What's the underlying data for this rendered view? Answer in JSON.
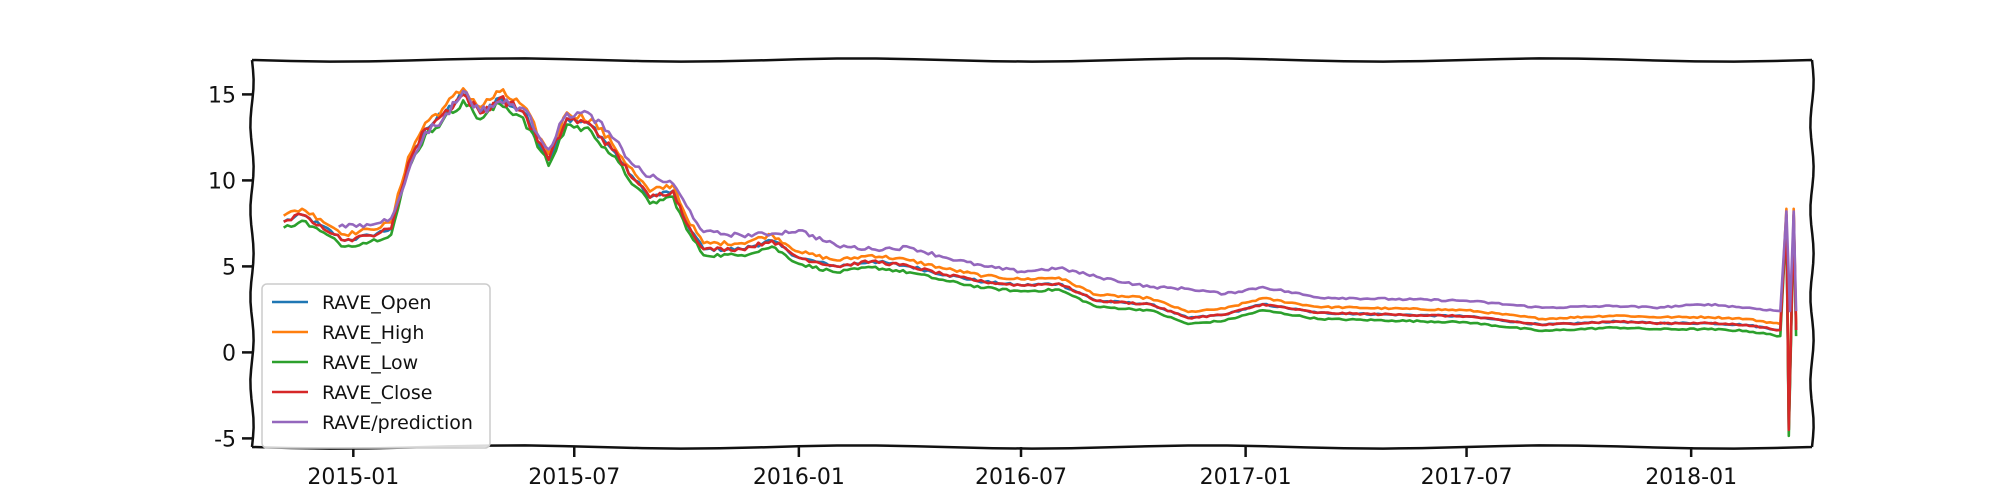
{
  "chart_data": {
    "type": "line",
    "title": "",
    "xlabel": "",
    "ylabel": "",
    "x_range": [
      "2014-10-10",
      "2018-04-10"
    ],
    "ylim": [
      -5.5,
      17
    ],
    "x_ticks": [
      {
        "date": "2015-01-01",
        "label": "2015-01"
      },
      {
        "date": "2015-07-01",
        "label": "2015-07"
      },
      {
        "date": "2016-01-01",
        "label": "2016-01"
      },
      {
        "date": "2016-07-01",
        "label": "2016-07"
      },
      {
        "date": "2017-01-01",
        "label": "2017-01"
      },
      {
        "date": "2017-07-01",
        "label": "2017-07"
      },
      {
        "date": "2018-01-01",
        "label": "2018-01"
      }
    ],
    "y_ticks": [
      {
        "value": 15,
        "label": "15"
      },
      {
        "value": 10,
        "label": "10"
      },
      {
        "value": 5,
        "label": "5"
      },
      {
        "value": 0,
        "label": "0"
      },
      {
        "value": -5,
        "label": "-5"
      }
    ],
    "grid": false,
    "legend_position": "lower-left",
    "series": [
      {
        "name": "RAVE_Open",
        "color": "#1f77b4",
        "offset": 0.0,
        "points": [
          [
            "2014-11-05",
            7.6
          ],
          [
            "2014-11-20",
            8.0
          ],
          [
            "2014-12-05",
            7.4
          ],
          [
            "2014-12-25",
            6.5
          ],
          [
            "2015-01-15",
            6.8
          ],
          [
            "2015-02-01",
            7.2
          ],
          [
            "2015-02-15",
            11.0
          ],
          [
            "2015-03-01",
            13.0
          ],
          [
            "2015-03-15",
            13.8
          ],
          [
            "2015-04-01",
            15.0
          ],
          [
            "2015-04-15",
            13.9
          ],
          [
            "2015-05-01",
            14.8
          ],
          [
            "2015-05-20",
            14.0
          ],
          [
            "2015-06-10",
            11.2
          ],
          [
            "2015-06-25",
            13.6
          ],
          [
            "2015-07-15",
            13.2
          ],
          [
            "2015-08-01",
            11.8
          ],
          [
            "2015-08-20",
            10.0
          ],
          [
            "2015-09-01",
            9.0
          ],
          [
            "2015-09-20",
            9.4
          ],
          [
            "2015-10-01",
            7.5
          ],
          [
            "2015-10-15",
            6.0
          ],
          [
            "2015-11-15",
            6.0
          ],
          [
            "2015-12-10",
            6.5
          ],
          [
            "2016-01-01",
            5.5
          ],
          [
            "2016-02-01",
            5.0
          ],
          [
            "2016-03-01",
            5.3
          ],
          [
            "2016-04-01",
            5.0
          ],
          [
            "2016-05-01",
            4.5
          ],
          [
            "2016-06-01",
            4.1
          ],
          [
            "2016-07-01",
            3.9
          ],
          [
            "2016-08-01",
            4.0
          ],
          [
            "2016-09-01",
            3.0
          ],
          [
            "2016-10-15",
            2.8
          ],
          [
            "2016-11-15",
            2.0
          ],
          [
            "2016-12-15",
            2.2
          ],
          [
            "2017-01-15",
            2.8
          ],
          [
            "2017-03-01",
            2.3
          ],
          [
            "2017-05-01",
            2.2
          ],
          [
            "2017-07-01",
            2.1
          ],
          [
            "2017-09-01",
            1.6
          ],
          [
            "2017-11-01",
            1.8
          ],
          [
            "2017-12-01",
            1.7
          ],
          [
            "2018-01-15",
            1.7
          ],
          [
            "2018-02-15",
            1.6
          ],
          [
            "2018-03-15",
            1.3
          ],
          [
            "2018-03-20",
            8.0
          ],
          [
            "2018-03-22",
            -4.5
          ],
          [
            "2018-03-24",
            1.5
          ],
          [
            "2018-03-26",
            8.0
          ],
          [
            "2018-03-28",
            1.3
          ]
        ]
      },
      {
        "name": "RAVE_High",
        "color": "#ff7f0e",
        "offset": 0.35,
        "points": [
          [
            "2014-11-05",
            7.6
          ],
          [
            "2014-11-20",
            8.0
          ],
          [
            "2014-12-05",
            7.4
          ],
          [
            "2014-12-25",
            6.5
          ],
          [
            "2015-01-15",
            6.8
          ],
          [
            "2015-02-01",
            7.2
          ],
          [
            "2015-02-15",
            11.0
          ],
          [
            "2015-03-01",
            13.0
          ],
          [
            "2015-03-15",
            13.8
          ],
          [
            "2015-04-01",
            15.0
          ],
          [
            "2015-04-15",
            13.9
          ],
          [
            "2015-05-01",
            14.8
          ],
          [
            "2015-05-20",
            14.0
          ],
          [
            "2015-06-10",
            11.2
          ],
          [
            "2015-06-25",
            13.6
          ],
          [
            "2015-07-15",
            13.2
          ],
          [
            "2015-08-01",
            11.8
          ],
          [
            "2015-08-20",
            10.0
          ],
          [
            "2015-09-01",
            9.0
          ],
          [
            "2015-09-20",
            9.4
          ],
          [
            "2015-10-01",
            7.5
          ],
          [
            "2015-10-15",
            6.0
          ],
          [
            "2015-11-15",
            6.0
          ],
          [
            "2015-12-10",
            6.5
          ],
          [
            "2016-01-01",
            5.5
          ],
          [
            "2016-02-01",
            5.0
          ],
          [
            "2016-03-01",
            5.3
          ],
          [
            "2016-04-01",
            5.0
          ],
          [
            "2016-05-01",
            4.5
          ],
          [
            "2016-06-01",
            4.1
          ],
          [
            "2016-07-01",
            3.9
          ],
          [
            "2016-08-01",
            4.0
          ],
          [
            "2016-09-01",
            3.0
          ],
          [
            "2016-10-15",
            2.8
          ],
          [
            "2016-11-15",
            2.0
          ],
          [
            "2016-12-15",
            2.2
          ],
          [
            "2017-01-15",
            2.8
          ],
          [
            "2017-03-01",
            2.3
          ],
          [
            "2017-05-01",
            2.2
          ],
          [
            "2017-07-01",
            2.1
          ],
          [
            "2017-09-01",
            1.6
          ],
          [
            "2017-11-01",
            1.8
          ],
          [
            "2017-12-01",
            1.7
          ],
          [
            "2018-01-15",
            1.7
          ],
          [
            "2018-02-15",
            1.6
          ],
          [
            "2018-03-15",
            1.3
          ],
          [
            "2018-03-20",
            8.0
          ],
          [
            "2018-03-22",
            -4.5
          ],
          [
            "2018-03-24",
            1.5
          ],
          [
            "2018-03-26",
            8.0
          ],
          [
            "2018-03-28",
            1.3
          ]
        ]
      },
      {
        "name": "RAVE_Low",
        "color": "#2ca02c",
        "offset": -0.35,
        "points": [
          [
            "2014-11-05",
            7.6
          ],
          [
            "2014-11-20",
            8.0
          ],
          [
            "2014-12-05",
            7.4
          ],
          [
            "2014-12-25",
            6.5
          ],
          [
            "2015-01-15",
            6.8
          ],
          [
            "2015-02-01",
            7.2
          ],
          [
            "2015-02-15",
            11.0
          ],
          [
            "2015-03-01",
            13.0
          ],
          [
            "2015-03-15",
            13.8
          ],
          [
            "2015-04-01",
            15.0
          ],
          [
            "2015-04-15",
            13.9
          ],
          [
            "2015-05-01",
            14.8
          ],
          [
            "2015-05-20",
            14.0
          ],
          [
            "2015-06-10",
            11.2
          ],
          [
            "2015-06-25",
            13.6
          ],
          [
            "2015-07-15",
            13.2
          ],
          [
            "2015-08-01",
            11.8
          ],
          [
            "2015-08-20",
            10.0
          ],
          [
            "2015-09-01",
            9.0
          ],
          [
            "2015-09-20",
            9.4
          ],
          [
            "2015-10-01",
            7.5
          ],
          [
            "2015-10-15",
            6.0
          ],
          [
            "2015-11-15",
            6.0
          ],
          [
            "2015-12-10",
            6.5
          ],
          [
            "2016-01-01",
            5.5
          ],
          [
            "2016-02-01",
            5.0
          ],
          [
            "2016-03-01",
            5.3
          ],
          [
            "2016-04-01",
            5.0
          ],
          [
            "2016-05-01",
            4.5
          ],
          [
            "2016-06-01",
            4.1
          ],
          [
            "2016-07-01",
            3.9
          ],
          [
            "2016-08-01",
            4.0
          ],
          [
            "2016-09-01",
            3.0
          ],
          [
            "2016-10-15",
            2.8
          ],
          [
            "2016-11-15",
            2.0
          ],
          [
            "2016-12-15",
            2.2
          ],
          [
            "2017-01-15",
            2.8
          ],
          [
            "2017-03-01",
            2.3
          ],
          [
            "2017-05-01",
            2.2
          ],
          [
            "2017-07-01",
            2.1
          ],
          [
            "2017-09-01",
            1.6
          ],
          [
            "2017-11-01",
            1.8
          ],
          [
            "2017-12-01",
            1.7
          ],
          [
            "2018-01-15",
            1.7
          ],
          [
            "2018-02-15",
            1.6
          ],
          [
            "2018-03-15",
            1.3
          ],
          [
            "2018-03-20",
            8.0
          ],
          [
            "2018-03-22",
            -4.5
          ],
          [
            "2018-03-24",
            1.5
          ],
          [
            "2018-03-26",
            8.0
          ],
          [
            "2018-03-28",
            1.3
          ]
        ]
      },
      {
        "name": "RAVE_Close",
        "color": "#d62728",
        "offset": 0.0,
        "points": [
          [
            "2014-11-05",
            7.6
          ],
          [
            "2014-11-20",
            8.0
          ],
          [
            "2014-12-05",
            7.4
          ],
          [
            "2014-12-25",
            6.5
          ],
          [
            "2015-01-15",
            6.8
          ],
          [
            "2015-02-01",
            7.2
          ],
          [
            "2015-02-15",
            11.0
          ],
          [
            "2015-03-01",
            13.0
          ],
          [
            "2015-03-15",
            13.8
          ],
          [
            "2015-04-01",
            15.0
          ],
          [
            "2015-04-15",
            13.9
          ],
          [
            "2015-05-01",
            14.8
          ],
          [
            "2015-05-20",
            14.0
          ],
          [
            "2015-06-10",
            11.2
          ],
          [
            "2015-06-25",
            13.6
          ],
          [
            "2015-07-15",
            13.2
          ],
          [
            "2015-08-01",
            11.8
          ],
          [
            "2015-08-20",
            10.0
          ],
          [
            "2015-09-01",
            9.0
          ],
          [
            "2015-09-20",
            9.4
          ],
          [
            "2015-10-01",
            7.5
          ],
          [
            "2015-10-15",
            6.0
          ],
          [
            "2015-11-15",
            6.0
          ],
          [
            "2015-12-10",
            6.5
          ],
          [
            "2016-01-01",
            5.5
          ],
          [
            "2016-02-01",
            5.0
          ],
          [
            "2016-03-01",
            5.3
          ],
          [
            "2016-04-01",
            5.0
          ],
          [
            "2016-05-01",
            4.5
          ],
          [
            "2016-06-01",
            4.1
          ],
          [
            "2016-07-01",
            3.9
          ],
          [
            "2016-08-01",
            4.0
          ],
          [
            "2016-09-01",
            3.0
          ],
          [
            "2016-10-15",
            2.8
          ],
          [
            "2016-11-15",
            2.0
          ],
          [
            "2016-12-15",
            2.2
          ],
          [
            "2017-01-15",
            2.8
          ],
          [
            "2017-03-01",
            2.3
          ],
          [
            "2017-05-01",
            2.2
          ],
          [
            "2017-07-01",
            2.1
          ],
          [
            "2017-09-01",
            1.6
          ],
          [
            "2017-11-01",
            1.8
          ],
          [
            "2017-12-01",
            1.7
          ],
          [
            "2018-01-15",
            1.7
          ],
          [
            "2018-02-15",
            1.6
          ],
          [
            "2018-03-15",
            1.3
          ],
          [
            "2018-03-20",
            8.0
          ],
          [
            "2018-03-22",
            -4.5
          ],
          [
            "2018-03-24",
            1.5
          ],
          [
            "2018-03-26",
            8.0
          ],
          [
            "2018-03-28",
            1.3
          ]
        ]
      },
      {
        "name": "RAVE/prediction",
        "color": "#9467bd",
        "offset": 0.0,
        "points": [
          [
            "2014-12-20",
            7.3
          ],
          [
            "2015-01-15",
            7.4
          ],
          [
            "2015-02-01",
            7.8
          ],
          [
            "2015-02-15",
            10.5
          ],
          [
            "2015-03-01",
            12.8
          ],
          [
            "2015-03-15",
            13.5
          ],
          [
            "2015-04-01",
            15.2
          ],
          [
            "2015-04-15",
            14.0
          ],
          [
            "2015-05-01",
            14.6
          ],
          [
            "2015-05-20",
            14.2
          ],
          [
            "2015-06-10",
            11.8
          ],
          [
            "2015-06-25",
            13.9
          ],
          [
            "2015-07-15",
            13.8
          ],
          [
            "2015-08-01",
            12.5
          ],
          [
            "2015-08-20",
            10.8
          ],
          [
            "2015-09-01",
            10.2
          ],
          [
            "2015-09-20",
            9.8
          ],
          [
            "2015-10-01",
            8.5
          ],
          [
            "2015-10-15",
            7.0
          ],
          [
            "2015-11-15",
            6.8
          ],
          [
            "2015-12-10",
            6.9
          ],
          [
            "2016-01-01",
            7.1
          ],
          [
            "2016-02-01",
            6.2
          ],
          [
            "2016-03-01",
            6.0
          ],
          [
            "2016-04-01",
            6.1
          ],
          [
            "2016-05-01",
            5.5
          ],
          [
            "2016-06-01",
            5.0
          ],
          [
            "2016-07-01",
            4.7
          ],
          [
            "2016-08-01",
            4.9
          ],
          [
            "2016-09-01",
            4.4
          ],
          [
            "2016-10-15",
            3.8
          ],
          [
            "2016-11-15",
            3.7
          ],
          [
            "2016-12-15",
            3.4
          ],
          [
            "2017-01-15",
            3.8
          ],
          [
            "2017-03-01",
            3.2
          ],
          [
            "2017-05-01",
            3.1
          ],
          [
            "2017-07-01",
            3.0
          ],
          [
            "2017-09-01",
            2.6
          ],
          [
            "2017-11-01",
            2.7
          ],
          [
            "2017-12-01",
            2.6
          ],
          [
            "2018-01-15",
            2.8
          ],
          [
            "2018-02-15",
            2.6
          ],
          [
            "2018-03-15",
            2.4
          ],
          [
            "2018-03-20",
            8.2
          ],
          [
            "2018-03-23",
            2.4
          ],
          [
            "2018-03-26",
            8.2
          ],
          [
            "2018-03-28",
            2.4
          ]
        ]
      }
    ]
  }
}
